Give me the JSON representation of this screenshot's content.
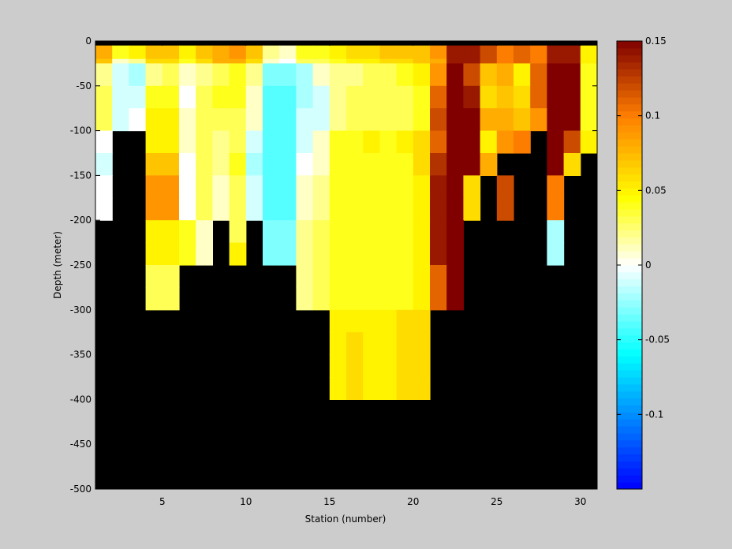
{
  "chart_data": {
    "type": "heatmap",
    "title": "",
    "xlabel": "Station (number)",
    "ylabel": "Depth (meter)",
    "xlim": [
      1,
      31
    ],
    "ylim": [
      -500,
      0
    ],
    "xticks": [
      5,
      10,
      15,
      20,
      25,
      30
    ],
    "yticks": [
      0,
      -50,
      -100,
      -150,
      -200,
      -250,
      -300,
      -350,
      -400,
      -450,
      -500
    ],
    "stations": [
      1,
      2,
      3,
      4,
      5,
      6,
      7,
      8,
      9,
      10,
      11,
      12,
      13,
      14,
      15,
      16,
      17,
      18,
      19,
      20,
      21,
      22,
      23,
      24,
      25,
      26,
      27,
      28,
      29,
      30
    ],
    "depth_bins": [
      {
        "top": 0,
        "bottom": -5
      },
      {
        "top": -5,
        "bottom": -20
      },
      {
        "top": -20,
        "bottom": -25
      },
      {
        "top": -25,
        "bottom": -50
      },
      {
        "top": -50,
        "bottom": -75
      },
      {
        "top": -75,
        "bottom": -100
      },
      {
        "top": -100,
        "bottom": -125
      },
      {
        "top": -125,
        "bottom": -150
      },
      {
        "top": -150,
        "bottom": -175
      },
      {
        "top": -175,
        "bottom": -200
      },
      {
        "top": -200,
        "bottom": -225
      },
      {
        "top": -225,
        "bottom": -250
      },
      {
        "top": -250,
        "bottom": -275
      },
      {
        "top": -275,
        "bottom": -300
      },
      {
        "top": -300,
        "bottom": -325
      },
      {
        "top": -325,
        "bottom": -350
      },
      {
        "top": -350,
        "bottom": -375
      },
      {
        "top": -375,
        "bottom": -400
      }
    ],
    "values": [
      [
        null,
        null,
        null,
        null,
        null,
        null,
        null,
        null,
        null,
        null,
        null,
        null,
        null,
        null,
        null,
        null,
        null,
        null,
        null,
        null,
        null,
        null,
        null,
        null,
        null,
        null,
        null,
        null,
        null,
        null
      ],
      [
        0.08,
        0.04,
        0.05,
        0.07,
        0.07,
        0.05,
        0.07,
        0.08,
        0.09,
        0.07,
        0.02,
        0.01,
        0.04,
        0.04,
        0.05,
        0.06,
        0.06,
        0.07,
        0.07,
        0.07,
        0.09,
        0.14,
        0.14,
        0.12,
        0.1,
        0.11,
        0.1,
        0.14,
        0.14,
        0.05
      ],
      [
        0.07,
        0.01,
        0.02,
        0.06,
        0.06,
        0.04,
        0.06,
        0.08,
        0.08,
        0.06,
        0.01,
        0.0,
        0.03,
        0.03,
        0.04,
        0.05,
        0.05,
        0.06,
        0.06,
        0.07,
        0.08,
        0.14,
        0.14,
        0.12,
        0.1,
        0.11,
        0.1,
        0.14,
        0.14,
        0.05
      ],
      [
        0.02,
        -0.01,
        -0.02,
        0.02,
        0.03,
        0.01,
        0.02,
        0.03,
        0.04,
        0.02,
        -0.03,
        -0.03,
        -0.02,
        0.01,
        0.02,
        0.02,
        0.03,
        0.03,
        0.04,
        0.05,
        0.09,
        0.15,
        0.12,
        0.07,
        0.08,
        0.05,
        0.11,
        0.15,
        0.15,
        0.04
      ],
      [
        0.03,
        -0.01,
        -0.01,
        0.04,
        0.04,
        0.0,
        0.03,
        0.04,
        0.04,
        0.01,
        -0.04,
        -0.04,
        -0.02,
        -0.01,
        0.02,
        0.03,
        0.03,
        0.03,
        0.03,
        0.04,
        0.11,
        0.15,
        0.14,
        0.06,
        0.07,
        0.06,
        0.11,
        0.15,
        0.15,
        0.04
      ],
      [
        0.03,
        -0.01,
        0.0,
        0.05,
        0.05,
        0.01,
        0.03,
        0.03,
        0.03,
        0.01,
        -0.04,
        -0.04,
        -0.01,
        -0.01,
        0.02,
        0.03,
        0.03,
        0.03,
        0.03,
        0.04,
        0.12,
        0.15,
        0.15,
        0.08,
        0.08,
        0.07,
        0.09,
        0.15,
        0.15,
        0.04
      ],
      [
        0.0,
        null,
        null,
        0.05,
        0.05,
        0.01,
        0.03,
        0.02,
        0.03,
        -0.01,
        -0.04,
        -0.04,
        -0.01,
        0.01,
        0.04,
        0.04,
        0.05,
        0.04,
        0.05,
        0.06,
        0.11,
        0.15,
        0.15,
        0.05,
        0.09,
        0.1,
        null,
        0.15,
        0.12,
        0.05
      ],
      [
        -0.01,
        null,
        null,
        0.07,
        0.07,
        0.0,
        0.03,
        0.02,
        0.04,
        -0.02,
        -0.04,
        -0.04,
        0.0,
        0.01,
        0.04,
        0.04,
        0.04,
        0.04,
        0.04,
        0.06,
        0.13,
        0.15,
        0.15,
        0.08,
        null,
        null,
        null,
        0.15,
        0.06,
        null
      ],
      [
        0.0,
        null,
        null,
        0.09,
        0.09,
        0.0,
        0.03,
        0.01,
        0.03,
        -0.01,
        -0.04,
        -0.04,
        0.01,
        0.02,
        0.04,
        0.04,
        0.04,
        0.04,
        0.04,
        0.05,
        0.14,
        0.15,
        0.06,
        null,
        0.12,
        null,
        null,
        0.1,
        null,
        null
      ],
      [
        0.0,
        null,
        null,
        0.09,
        0.09,
        0.0,
        0.03,
        0.01,
        0.03,
        -0.01,
        -0.04,
        -0.04,
        0.01,
        0.02,
        0.04,
        0.04,
        0.04,
        0.04,
        0.04,
        0.05,
        0.14,
        0.15,
        0.06,
        null,
        0.12,
        null,
        null,
        0.1,
        null,
        null
      ],
      [
        null,
        null,
        null,
        0.05,
        0.05,
        0.04,
        0.01,
        null,
        0.03,
        null,
        -0.03,
        -0.03,
        0.02,
        0.03,
        0.04,
        0.04,
        0.04,
        0.04,
        0.04,
        0.05,
        0.14,
        0.15,
        null,
        null,
        null,
        null,
        null,
        -0.02,
        null,
        null
      ],
      [
        null,
        null,
        null,
        0.05,
        0.05,
        0.04,
        0.01,
        null,
        0.05,
        null,
        -0.03,
        -0.03,
        0.02,
        0.03,
        0.04,
        0.04,
        0.04,
        0.04,
        0.04,
        0.05,
        0.14,
        0.15,
        null,
        null,
        null,
        null,
        null,
        -0.02,
        null,
        null
      ],
      [
        null,
        null,
        null,
        0.03,
        0.03,
        null,
        null,
        null,
        null,
        null,
        null,
        null,
        0.02,
        0.03,
        0.04,
        0.04,
        0.04,
        0.04,
        0.04,
        0.05,
        0.11,
        0.15,
        null,
        null,
        null,
        null,
        null,
        null,
        null,
        null
      ],
      [
        null,
        null,
        null,
        0.03,
        0.03,
        null,
        null,
        null,
        null,
        null,
        null,
        null,
        0.02,
        0.03,
        0.04,
        0.04,
        0.04,
        0.04,
        0.04,
        0.05,
        0.11,
        0.15,
        null,
        null,
        null,
        null,
        null,
        null,
        null,
        null
      ],
      [
        null,
        null,
        null,
        null,
        null,
        null,
        null,
        null,
        null,
        null,
        null,
        null,
        null,
        null,
        0.05,
        0.05,
        0.05,
        0.05,
        0.06,
        0.06,
        null,
        null,
        null,
        null,
        null,
        null,
        null,
        null,
        null,
        null
      ],
      [
        null,
        null,
        null,
        null,
        null,
        null,
        null,
        null,
        null,
        null,
        null,
        null,
        null,
        null,
        0.05,
        0.06,
        0.05,
        0.05,
        0.06,
        0.06,
        null,
        null,
        null,
        null,
        null,
        null,
        null,
        null,
        null,
        null
      ],
      [
        null,
        null,
        null,
        null,
        null,
        null,
        null,
        null,
        null,
        null,
        null,
        null,
        null,
        null,
        0.05,
        0.06,
        0.05,
        0.05,
        0.06,
        0.06,
        null,
        null,
        null,
        null,
        null,
        null,
        null,
        null,
        null,
        null
      ],
      [
        null,
        null,
        null,
        null,
        null,
        null,
        null,
        null,
        null,
        null,
        null,
        null,
        null,
        null,
        0.05,
        0.06,
        0.05,
        0.05,
        0.06,
        0.06,
        null,
        null,
        null,
        null,
        null,
        null,
        null,
        null,
        null,
        null
      ]
    ],
    "colorbar": {
      "range": [
        -0.15,
        0.15
      ],
      "ticks": [
        0.15,
        0.1,
        0.05,
        0,
        -0.05,
        -0.1
      ],
      "tick_labels": [
        "0.15",
        "0.1",
        "0.05",
        "0",
        "-0.05",
        "-0.1"
      ]
    },
    "missing_color": "#000000",
    "grid": false,
    "legend": "none"
  },
  "colors": {
    "figure_background": "#cccccc",
    "no_data": "#000000",
    "colormap": [
      "#0000ff",
      "#00ffff",
      "#ffffff",
      "#ffff00",
      "#ff8000",
      "#800000"
    ]
  }
}
